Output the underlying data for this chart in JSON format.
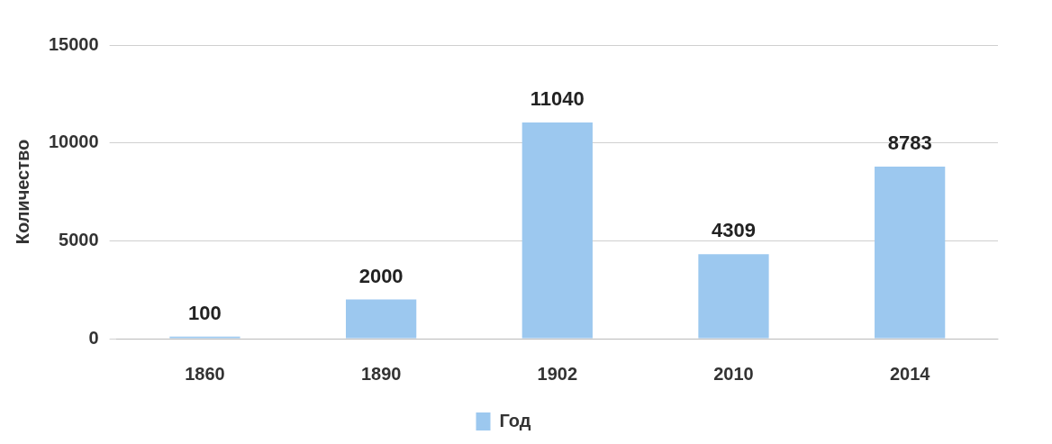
{
  "chart_data": {
    "type": "bar",
    "ylabel": "Количество",
    "categories": [
      "1860",
      "1890",
      "1902",
      "2010",
      "2014"
    ],
    "series": [
      {
        "name": "Год",
        "color": "#9cc8ef",
        "values": [
          100,
          2000,
          11040,
          4309,
          8783
        ]
      }
    ],
    "ylim": [
      0,
      15000
    ],
    "yticks": [
      0,
      5000,
      10000,
      15000
    ],
    "grid": "y",
    "legend": "bottom",
    "data_labels": true
  }
}
